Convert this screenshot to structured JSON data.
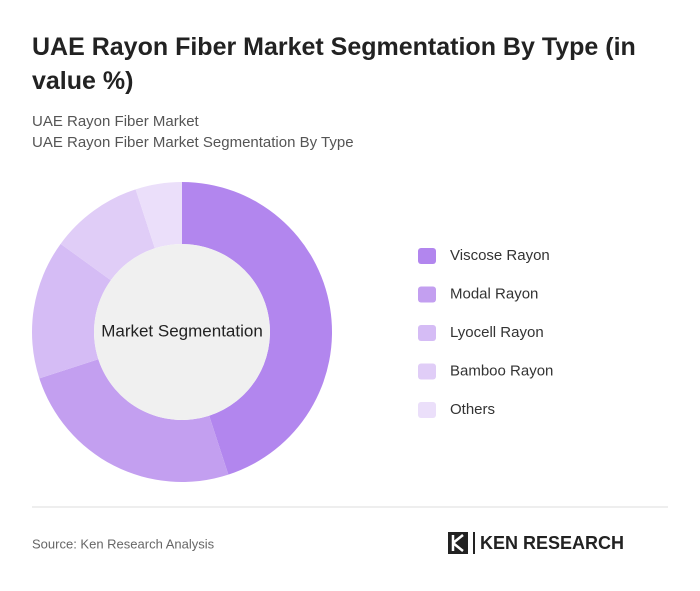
{
  "chart_data": {
    "type": "donut",
    "title": "UAE Rayon Fiber Market Segmentation By Type (in value %)",
    "subtitle": [
      "UAE Rayon Fiber Market",
      "UAE Rayon Fiber Market Segmentation By Type"
    ],
    "center_label": "Market Segmentation",
    "categories": [
      "Viscose Rayon",
      "Modal Rayon",
      "Lyocell Rayon",
      "Bamboo Rayon",
      "Others"
    ],
    "values": [
      45,
      25,
      15,
      10,
      5
    ],
    "colors": [
      "#b286ee",
      "#c39ff0",
      "#d5bcf5",
      "#e0cdf7",
      "#ebdffa"
    ],
    "source": "Source: Ken Research Analysis",
    "logo": "KEN RESEARCH"
  }
}
